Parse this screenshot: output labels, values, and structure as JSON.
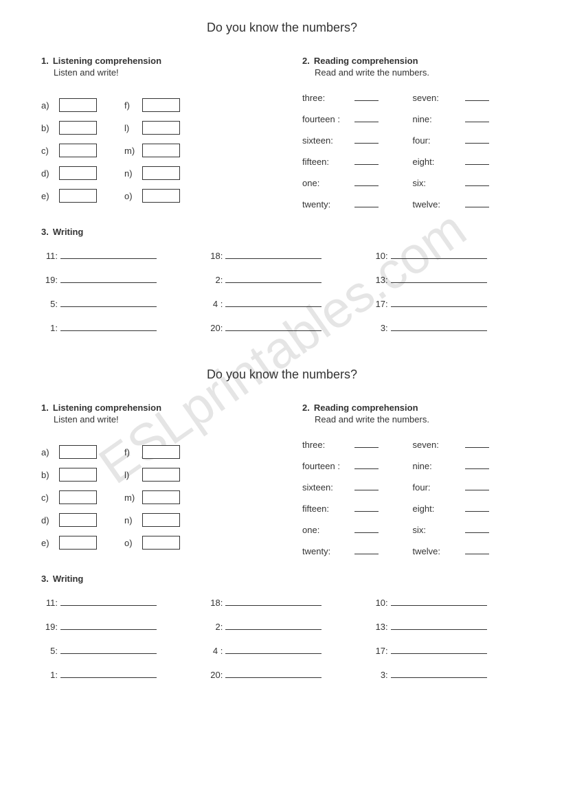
{
  "watermark": "ESLprintables.com",
  "worksheet": {
    "title": "Do you know the numbers?",
    "section1": {
      "num": "1.",
      "title": "Listening comprehension",
      "sub": "Listen and write!",
      "col1": [
        "a)",
        "b)",
        "c)",
        "d)",
        "e)"
      ],
      "col2": [
        "f)",
        "l)",
        "m)",
        "n)",
        "o)"
      ]
    },
    "section2": {
      "num": "2.",
      "title": "Reading comprehension",
      "sub": "Read and write the numbers.",
      "rows": [
        {
          "l": "three:",
          "r": "seven:"
        },
        {
          "l": "fourteen :",
          "r": "nine:"
        },
        {
          "l": "sixteen:",
          "r": "four:"
        },
        {
          "l": "fifteen:",
          "r": "eight:"
        },
        {
          "l": "one:",
          "r": "six:"
        },
        {
          "l": "twenty:",
          "r": "twelve:"
        }
      ]
    },
    "section3": {
      "num": "3.",
      "title": "Writing",
      "rows": [
        {
          "a": "11:",
          "b": "18:",
          "c": "10:"
        },
        {
          "a": "19:",
          "b": "2:",
          "c": "13:"
        },
        {
          "a": "5:",
          "b": "4 :",
          "c": "17:"
        },
        {
          "a": "1:",
          "b": "20:",
          "c": "3:"
        }
      ]
    }
  }
}
